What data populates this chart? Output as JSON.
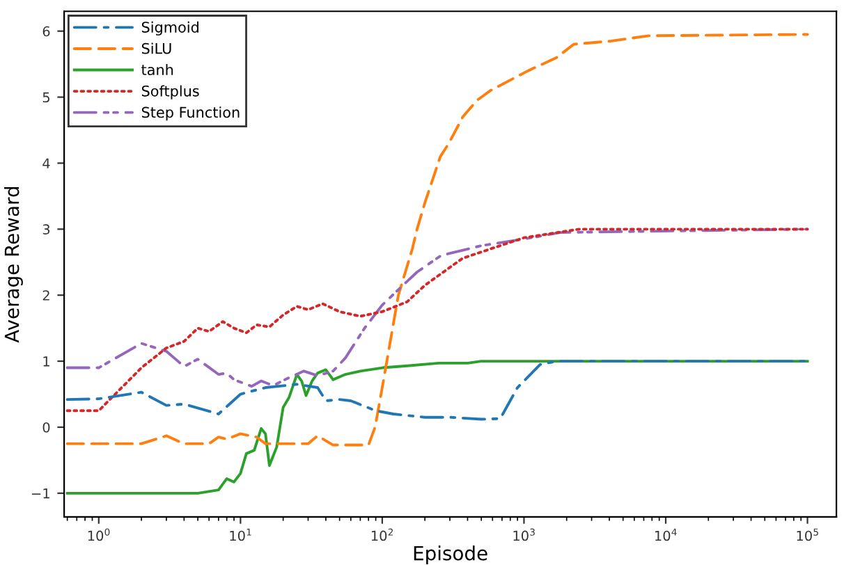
{
  "chart_data": {
    "type": "line",
    "xlabel": "Episode",
    "ylabel": "Average Reward",
    "log": "x",
    "xlim": [
      0.57,
      160000
    ],
    "ylim": [
      -1.36,
      6.3
    ],
    "xticks": [
      {
        "value": 1,
        "label": "10$^{0}$"
      },
      {
        "value": 10,
        "label": "10$^{1}$"
      },
      {
        "value": 100,
        "label": "10$^{2}$"
      },
      {
        "value": 1000,
        "label": "10$^{3}$"
      },
      {
        "value": 10000,
        "label": "10$^{4}$"
      },
      {
        "value": 100000,
        "label": "10$^{5}$"
      }
    ],
    "yticks": [
      {
        "value": -1,
        "label": "−1"
      },
      0,
      1,
      2,
      3,
      4,
      5,
      6
    ],
    "grid": false,
    "legend": "top left",
    "marker": "none",
    "series": [
      {
        "name": "Sigmoid",
        "color": "#1f77b4",
        "line_style": "dashdot",
        "x": [
          0.6,
          1,
          2,
          3,
          4,
          7,
          10,
          15,
          25,
          35,
          40,
          50,
          60,
          90,
          120,
          200,
          300,
          500,
          680,
          900,
          1300,
          1700,
          2500,
          10000,
          100000
        ],
        "values": [
          0.42,
          0.43,
          0.53,
          0.33,
          0.35,
          0.2,
          0.5,
          0.6,
          0.65,
          0.6,
          0.4,
          0.42,
          0.4,
          0.25,
          0.2,
          0.15,
          0.15,
          0.12,
          0.13,
          0.6,
          0.95,
          1.0,
          1.0,
          1.0,
          1.0
        ]
      },
      {
        "name": "SiLU",
        "color": "#ff7f0e",
        "line_style": "dashed",
        "x": [
          0.6,
          2,
          3,
          4,
          6,
          7,
          8,
          10,
          13,
          15,
          30,
          35,
          45,
          80,
          89,
          100,
          130,
          163,
          176,
          200,
          257,
          295,
          370,
          465,
          580,
          1070,
          1700,
          2240,
          4150,
          7600,
          100000
        ],
        "values": [
          -0.25,
          -0.25,
          -0.13,
          -0.25,
          -0.25,
          -0.15,
          -0.18,
          -0.1,
          -0.15,
          -0.25,
          -0.25,
          -0.13,
          -0.27,
          -0.27,
          0,
          0.6,
          2.0,
          2.7,
          3.0,
          3.4,
          4.1,
          4.3,
          4.7,
          4.95,
          5.1,
          5.4,
          5.6,
          5.8,
          5.85,
          5.93,
          5.95
        ]
      },
      {
        "name": "tanh",
        "color": "#2ca02c",
        "line_style": "solid",
        "x": [
          0.6,
          5,
          7,
          8,
          9,
          10,
          11,
          12.5,
          14,
          15,
          16,
          18,
          20,
          22,
          25,
          27,
          29,
          32,
          35,
          40,
          45,
          55,
          70,
          100,
          150,
          250,
          400,
          500,
          100000
        ],
        "values": [
          -1,
          -1,
          -0.95,
          -0.78,
          -0.83,
          -0.7,
          -0.4,
          -0.35,
          -0.02,
          -0.1,
          -0.58,
          -0.3,
          0.3,
          0.45,
          0.8,
          0.7,
          0.48,
          0.7,
          0.82,
          0.87,
          0.72,
          0.8,
          0.85,
          0.9,
          0.93,
          0.97,
          0.97,
          1.0,
          1.0
        ]
      },
      {
        "name": "Softplus",
        "color": "#d62728",
        "line_style": "dotted",
        "x": [
          0.6,
          1,
          2,
          3,
          4,
          5,
          6,
          7.5,
          9,
          11,
          13,
          16,
          20,
          25,
          30,
          38,
          50,
          70,
          100,
          150,
          200,
          370,
          1000,
          2450,
          100000
        ],
        "values": [
          0.25,
          0.25,
          0.9,
          1.2,
          1.3,
          1.5,
          1.45,
          1.6,
          1.5,
          1.43,
          1.55,
          1.52,
          1.7,
          1.83,
          1.78,
          1.87,
          1.75,
          1.68,
          1.75,
          1.9,
          2.15,
          2.56,
          2.87,
          3.0,
          3.0
        ]
      },
      {
        "name": "Step Function",
        "color": "#9467bd",
        "line_style": "dashdotdot",
        "x": [
          0.6,
          1,
          2,
          3,
          4,
          5,
          7,
          8,
          9,
          12,
          14,
          17,
          22,
          28,
          35,
          45,
          55,
          75,
          100,
          140,
          176,
          260,
          500,
          1000,
          1800,
          100000
        ],
        "values": [
          0.9,
          0.9,
          1.27,
          1.15,
          0.92,
          1.03,
          0.8,
          0.82,
          0.72,
          0.62,
          0.7,
          0.63,
          0.75,
          0.85,
          0.78,
          0.85,
          1.05,
          1.5,
          1.85,
          2.15,
          2.35,
          2.6,
          2.75,
          2.85,
          2.95,
          3.0
        ]
      }
    ]
  }
}
